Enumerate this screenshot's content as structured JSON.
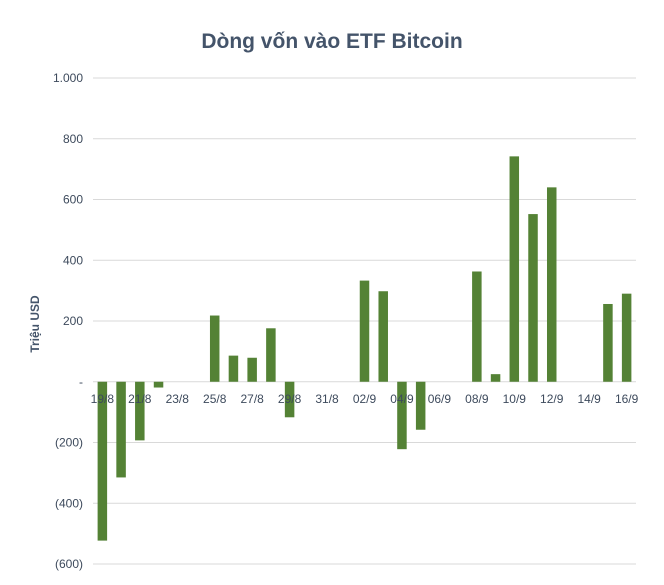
{
  "chart_data": {
    "type": "bar",
    "title": "Dòng vốn vào ETF Bitcoin",
    "xlabel": "",
    "ylabel": "Triệu USD",
    "ylim": [
      -600,
      1000
    ],
    "yticks": [
      1000,
      800,
      600,
      400,
      200,
      0,
      -200,
      -400,
      -600
    ],
    "ytick_labels": [
      "1.000",
      "800",
      "600",
      "400",
      "200",
      "-",
      "(200)",
      "(400)",
      "(600)"
    ],
    "grid": true,
    "legend": "none",
    "bar_color": "#548235",
    "categories": [
      "19/8",
      "20/8",
      "21/8",
      "22/8",
      "23/8",
      "24/8",
      "25/8",
      "26/8",
      "27/8",
      "28/8",
      "29/8",
      "30/8",
      "31/8",
      "01/9",
      "02/9",
      "03/9",
      "04/9",
      "05/9",
      "06/9",
      "07/9",
      "08/9",
      "09/9",
      "10/9",
      "11/9",
      "12/9",
      "13/9",
      "14/9",
      "15/9",
      "16/9"
    ],
    "shown_labels": [
      "19/8",
      "21/8",
      "23/8",
      "25/8",
      "27/8",
      "29/8",
      "31/8",
      "02/9",
      "04/9",
      "06/9",
      "08/9",
      "10/9",
      "12/9",
      "14/9",
      "16/9"
    ],
    "values": [
      -523,
      -315,
      -193,
      -19,
      0,
      0,
      218,
      86,
      79,
      176,
      -117,
      0,
      0,
      0,
      333,
      298,
      -222,
      -158,
      0,
      0,
      363,
      25,
      742,
      552,
      640,
      0,
      0,
      256,
      290
    ]
  }
}
